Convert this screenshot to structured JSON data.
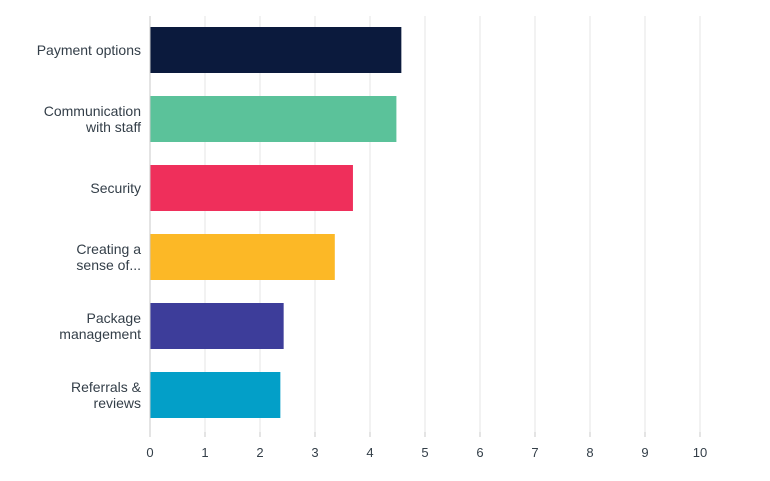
{
  "chart_data": {
    "type": "bar",
    "orientation": "horizontal",
    "categories": [
      [
        "Payment options"
      ],
      [
        "Communication",
        "with staff"
      ],
      [
        "Security"
      ],
      [
        "Creating a",
        "sense of..."
      ],
      [
        "Package",
        "management"
      ],
      [
        "Referrals &",
        "reviews"
      ]
    ],
    "values": [
      4.57,
      4.48,
      3.69,
      3.36,
      2.43,
      2.37
    ],
    "colors": [
      "#0b1a3d",
      "#5bc29a",
      "#ef2f5b",
      "#fcb826",
      "#3d3d9a",
      "#039fc8"
    ],
    "xlim": [
      0,
      10
    ],
    "xticks": [
      "0",
      "1",
      "2",
      "3",
      "4",
      "5",
      "6",
      "7",
      "8",
      "9",
      "10"
    ],
    "grid": true,
    "gridColor": "#e6e6e6",
    "axisColor": "#c9c9c9"
  }
}
